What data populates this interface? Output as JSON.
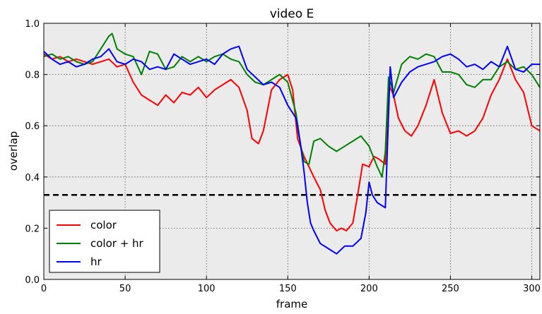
{
  "chart_data": {
    "type": "line",
    "title": "video E",
    "xlabel": "frame",
    "ylabel": "overlap",
    "xlim": [
      0,
      305
    ],
    "ylim": [
      0.0,
      1.0
    ],
    "xticks": [
      "0",
      "50",
      "100",
      "150",
      "200",
      "250",
      "300"
    ],
    "yticks": [
      "0.0",
      "0.2",
      "0.4",
      "0.6",
      "0.8",
      "1.0"
    ],
    "grid": true,
    "legend_position": "lower-left",
    "threshold": {
      "y": 0.33,
      "style": "dashed",
      "color": "#000000"
    },
    "series": [
      {
        "name": "color",
        "color": "#ff0000",
        "x": [
          0,
          5,
          10,
          15,
          20,
          25,
          30,
          35,
          40,
          45,
          50,
          55,
          60,
          65,
          70,
          75,
          80,
          85,
          90,
          95,
          100,
          105,
          110,
          115,
          120,
          125,
          128,
          132,
          135,
          140,
          145,
          150,
          153,
          156,
          160,
          163,
          166,
          170,
          173,
          176,
          180,
          183,
          186,
          190,
          193,
          196,
          200,
          203,
          206,
          210,
          212,
          215,
          218,
          222,
          226,
          230,
          235,
          240,
          245,
          250,
          255,
          260,
          265,
          270,
          275,
          280,
          285,
          290,
          295,
          300,
          305
        ],
        "y": [
          0.88,
          0.86,
          0.87,
          0.85,
          0.86,
          0.85,
          0.84,
          0.85,
          0.86,
          0.83,
          0.84,
          0.77,
          0.72,
          0.7,
          0.68,
          0.72,
          0.69,
          0.73,
          0.72,
          0.75,
          0.71,
          0.74,
          0.76,
          0.78,
          0.75,
          0.66,
          0.55,
          0.53,
          0.58,
          0.74,
          0.78,
          0.8,
          0.74,
          0.55,
          0.48,
          0.44,
          0.4,
          0.35,
          0.27,
          0.22,
          0.19,
          0.2,
          0.19,
          0.22,
          0.33,
          0.45,
          0.44,
          0.48,
          0.47,
          0.45,
          0.76,
          0.72,
          0.63,
          0.58,
          0.56,
          0.6,
          0.68,
          0.78,
          0.65,
          0.57,
          0.58,
          0.56,
          0.58,
          0.63,
          0.72,
          0.78,
          0.86,
          0.78,
          0.73,
          0.6,
          0.58
        ]
      },
      {
        "name": "color + hr",
        "color": "#008000",
        "x": [
          0,
          5,
          10,
          15,
          20,
          25,
          30,
          35,
          40,
          42,
          45,
          50,
          55,
          60,
          65,
          70,
          75,
          80,
          85,
          90,
          95,
          100,
          105,
          110,
          115,
          120,
          125,
          130,
          135,
          140,
          145,
          150,
          155,
          158,
          160,
          163,
          166,
          170,
          175,
          180,
          185,
          190,
          195,
          200,
          205,
          208,
          210,
          212,
          215,
          220,
          225,
          230,
          235,
          240,
          245,
          250,
          255,
          260,
          265,
          270,
          275,
          280,
          285,
          290,
          295,
          300,
          305
        ],
        "y": [
          0.87,
          0.88,
          0.86,
          0.87,
          0.85,
          0.84,
          0.85,
          0.9,
          0.95,
          0.96,
          0.9,
          0.88,
          0.87,
          0.8,
          0.89,
          0.88,
          0.82,
          0.83,
          0.87,
          0.85,
          0.87,
          0.85,
          0.87,
          0.88,
          0.86,
          0.85,
          0.8,
          0.77,
          0.76,
          0.78,
          0.8,
          0.77,
          0.65,
          0.52,
          0.46,
          0.45,
          0.54,
          0.55,
          0.52,
          0.5,
          0.52,
          0.54,
          0.56,
          0.52,
          0.44,
          0.4,
          0.5,
          0.79,
          0.73,
          0.84,
          0.87,
          0.86,
          0.88,
          0.87,
          0.81,
          0.81,
          0.8,
          0.76,
          0.75,
          0.78,
          0.78,
          0.83,
          0.85,
          0.82,
          0.83,
          0.8,
          0.75
        ]
      },
      {
        "name": "hr",
        "color": "#0000ff",
        "x": [
          0,
          5,
          10,
          15,
          20,
          25,
          30,
          35,
          40,
          45,
          50,
          55,
          60,
          65,
          70,
          75,
          80,
          85,
          90,
          95,
          100,
          105,
          110,
          115,
          120,
          125,
          130,
          135,
          140,
          145,
          150,
          155,
          158,
          160,
          162,
          164,
          166,
          170,
          175,
          180,
          185,
          190,
          195,
          198,
          200,
          202,
          205,
          210,
          213,
          215,
          220,
          225,
          230,
          235,
          240,
          245,
          250,
          255,
          260,
          265,
          270,
          275,
          280,
          285,
          290,
          295,
          300,
          305
        ],
        "y": [
          0.89,
          0.86,
          0.84,
          0.85,
          0.83,
          0.84,
          0.86,
          0.87,
          0.9,
          0.85,
          0.84,
          0.86,
          0.85,
          0.82,
          0.83,
          0.82,
          0.88,
          0.86,
          0.84,
          0.85,
          0.86,
          0.84,
          0.88,
          0.9,
          0.91,
          0.82,
          0.79,
          0.76,
          0.77,
          0.75,
          0.68,
          0.63,
          0.52,
          0.42,
          0.3,
          0.22,
          0.19,
          0.14,
          0.12,
          0.1,
          0.13,
          0.13,
          0.16,
          0.26,
          0.38,
          0.33,
          0.3,
          0.28,
          0.83,
          0.71,
          0.77,
          0.81,
          0.83,
          0.84,
          0.85,
          0.87,
          0.88,
          0.86,
          0.83,
          0.84,
          0.82,
          0.85,
          0.83,
          0.91,
          0.82,
          0.81,
          0.84,
          0.84
        ]
      }
    ]
  }
}
